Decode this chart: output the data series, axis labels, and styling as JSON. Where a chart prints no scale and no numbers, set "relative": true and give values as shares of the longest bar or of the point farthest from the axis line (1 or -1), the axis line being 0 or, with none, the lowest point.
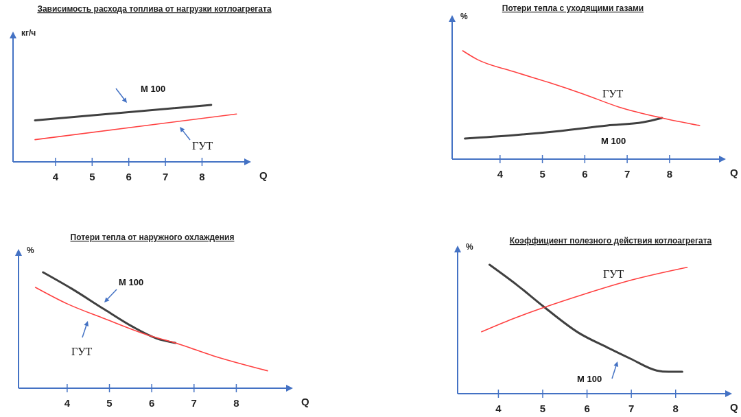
{
  "chart_data": [
    {
      "type": "line",
      "title": "Зависимость расхода топлива от нагрузки котлоагрегата",
      "xlabel": "Q",
      "ylabel": "кг/ч",
      "relative": true,
      "legend": false,
      "xlim": [
        2.84,
        9.19
      ],
      "xticks": [
        4,
        5,
        6,
        7,
        8
      ],
      "series": [
        {
          "name": "М 100",
          "color": "#404040",
          "x": [
            3.44,
            8.25
          ],
          "values": [
            0.73,
            1.0
          ]
        },
        {
          "name": "ГУТ",
          "color": "#ff4040",
          "x": [
            3.44,
            8.94
          ],
          "values": [
            0.39,
            0.84
          ]
        }
      ]
    },
    {
      "type": "line",
      "title": "Потери тепла с уходящими газами",
      "xlabel": "Q",
      "ylabel": "%",
      "relative": true,
      "legend": false,
      "xlim": [
        2.87,
        9.2
      ],
      "xticks": [
        4,
        5,
        6,
        7,
        8
      ],
      "series": [
        {
          "name": "М 100",
          "color": "#404040",
          "x": [
            3.17,
            4.3,
            5.42,
            6.53,
            7.37,
            7.82
          ],
          "values": [
            0.19,
            0.22,
            0.26,
            0.31,
            0.34,
            0.38
          ]
        },
        {
          "name": "ГУТ",
          "color": "#ff4040",
          "x": [
            3.12,
            3.46,
            4.3,
            5.13,
            5.97,
            6.81,
            7.82,
            8.71
          ],
          "values": [
            1.0,
            0.92,
            0.81,
            0.71,
            0.6,
            0.48,
            0.38,
            0.31
          ]
        }
      ]
    },
    {
      "type": "line",
      "title": "Потери тепла от наружного охлаждения",
      "xlabel": "Q",
      "ylabel": "%",
      "relative": true,
      "legend": false,
      "xlim": [
        2.85,
        9.21
      ],
      "xticks": [
        4,
        5,
        6,
        7,
        8
      ],
      "series": [
        {
          "name": "М 100",
          "color": "#404040",
          "x": [
            3.43,
            4.1,
            4.88,
            5.55,
            6.11,
            6.56
          ],
          "values": [
            1.0,
            0.86,
            0.68,
            0.53,
            0.43,
            0.39
          ]
        },
        {
          "name": "ГУТ",
          "color": "#ff4040",
          "x": [
            3.25,
            3.99,
            4.88,
            5.89,
            6.56,
            7.45,
            8.74
          ],
          "values": [
            0.87,
            0.73,
            0.6,
            0.46,
            0.39,
            0.28,
            0.15
          ]
        }
      ]
    },
    {
      "type": "line",
      "title": "Коэффициент полезного действия котлоагрегата",
      "xlabel": "Q",
      "ylabel": "%",
      "relative": true,
      "legend": false,
      "xlim": [
        3.08,
        9.15
      ],
      "xticks": [
        4,
        5,
        6,
        7,
        8
      ],
      "series": [
        {
          "name": "М 100",
          "color": "#404040",
          "x": [
            3.8,
            4.43,
            5.04,
            5.82,
            6.45,
            6.99,
            7.57,
            7.84,
            8.15
          ],
          "values": [
            1.0,
            0.84,
            0.67,
            0.47,
            0.36,
            0.27,
            0.18,
            0.17,
            0.17
          ]
        },
        {
          "name": "ГУТ",
          "color": "#ff4040",
          "x": [
            3.62,
            4.32,
            5.04,
            5.92,
            6.99,
            8.26
          ],
          "values": [
            0.48,
            0.58,
            0.67,
            0.77,
            0.88,
            0.98
          ]
        }
      ]
    }
  ]
}
